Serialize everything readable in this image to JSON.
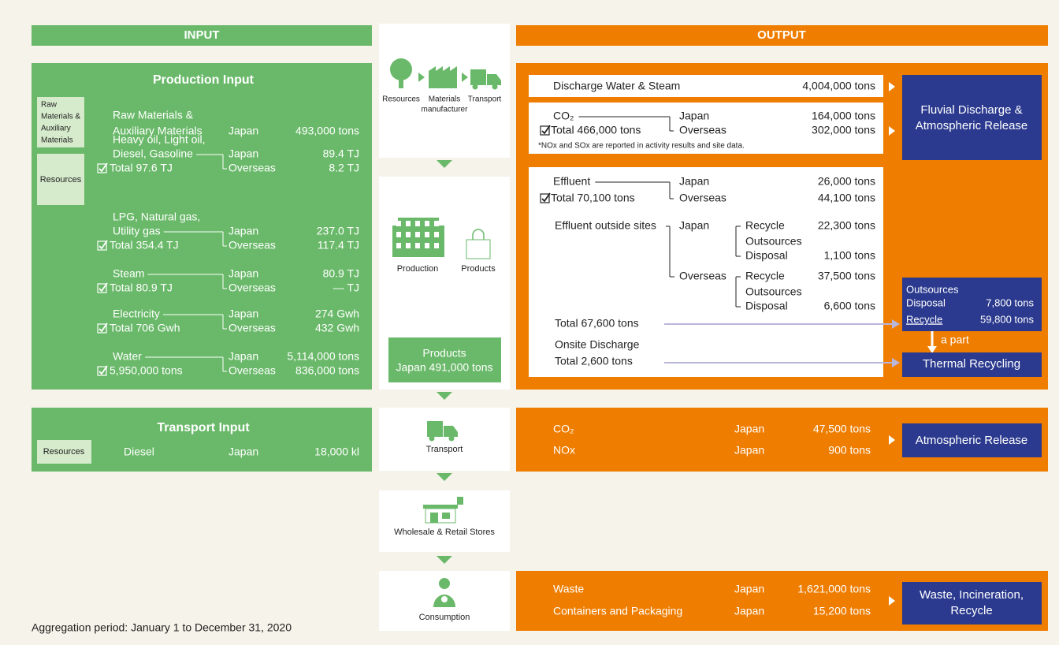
{
  "headers": {
    "input": "INPUT",
    "output": "OUTPUT"
  },
  "production_input": {
    "title": "Production Input",
    "raw_materials": {
      "category": [
        "Raw",
        "Materials &",
        "Auxiliary",
        "Materials"
      ],
      "label": [
        "Raw Materials &",
        "Auxiliary Materials"
      ],
      "region": "Japan",
      "amount": "493,000 tons"
    },
    "resources": {
      "category": "Resources",
      "items": [
        {
          "label": [
            "Heavy oil, Light oil,",
            "Diesel, Gasoline"
          ],
          "total": "Total 97.6 TJ",
          "japan": "Japan",
          "japan_amount": "89.4 TJ",
          "overseas": "Overseas",
          "overseas_amount": "8.2 TJ"
        },
        {
          "label": [
            "LPG, Natural gas,",
            "Utility gas"
          ],
          "total": "Total 354.4 TJ",
          "japan": "Japan",
          "japan_amount": "237.0 TJ",
          "overseas": "Overseas",
          "overseas_amount": "117.4 TJ"
        },
        {
          "label": [
            "Steam"
          ],
          "total": "Total 80.9 TJ",
          "japan": "Japan",
          "japan_amount": "80.9 TJ",
          "overseas": "Overseas",
          "overseas_amount": "— TJ"
        },
        {
          "label": [
            "Electricity"
          ],
          "total": "Total 706 Gwh",
          "japan": "Japan",
          "japan_amount": "274 Gwh",
          "overseas": "Overseas",
          "overseas_amount": "432 Gwh"
        },
        {
          "label": [
            "Water"
          ],
          "total": "5,950,000 tons",
          "japan": "Japan",
          "japan_amount": "5,114,000 tons",
          "overseas": "Overseas",
          "overseas_amount": "836,000 tons"
        }
      ]
    }
  },
  "flow": {
    "sourcing": {
      "resources": "Resources",
      "materials_manufacturer": [
        "Materials",
        "manufacturer"
      ],
      "transport": "Transport"
    },
    "production": {
      "production": "Production",
      "products": "Products",
      "output": [
        "Products",
        "Japan 491,000 tons"
      ]
    },
    "transport": "Transport",
    "stores": "Wholesale & Retail Stores",
    "consumption": "Consumption"
  },
  "production_output": {
    "discharge_water": {
      "label": "Discharge Water & Steam",
      "amount": "4,004,000 tons"
    },
    "co2": {
      "label": "CO₂",
      "total": "Total 466,000 tons",
      "japan": "Japan",
      "japan_amount": "164,000 tons",
      "overseas": "Overseas",
      "overseas_amount": "302,000 tons",
      "note": "*NOx and SOx are reported in activity results and site data."
    },
    "destination": [
      "Fluvial Discharge &",
      "Atmospheric Release"
    ],
    "effluent": {
      "label": "Effluent",
      "total": "Total 70,100 tons",
      "japan": "Japan",
      "japan_amount": "26,000 tons",
      "overseas": "Overseas",
      "overseas_amount": "44,100 tons"
    },
    "outside_sites": {
      "label": "Effluent outside sites",
      "japan": {
        "region": "Japan",
        "recycle": "Recycle",
        "recycle_amount": "22,300 tons",
        "outsources": "Outsources",
        "disposal": "Disposal",
        "disposal_amount": "1,100 tons"
      },
      "overseas": {
        "region": "Overseas",
        "recycle": "Recycle",
        "recycle_amount": "37,500 tons",
        "outsources": "Outsources",
        "disposal": "Disposal",
        "disposal_amount": "6,600 tons"
      },
      "total": "Total 67,600 tons"
    },
    "onsite": {
      "label": "Onsite Discharge",
      "total": "Total 2,600 tons"
    },
    "outsources": {
      "title": "Outsources",
      "disposal": "Disposal",
      "disposal_amount": "7,800 tons",
      "recycle": "Recycle",
      "recycle_amount": "59,800 tons"
    },
    "a_part": "a part",
    "thermal": "Thermal Recycling"
  },
  "transport_input": {
    "title": "Transport Input",
    "category": "Resources",
    "label": "Diesel",
    "region": "Japan",
    "amount": "18,000 kl"
  },
  "transport_output": {
    "rows": [
      {
        "label": "CO₂",
        "region": "Japan",
        "amount": "47,500 tons"
      },
      {
        "label": "NOx",
        "region": "Japan",
        "amount": "900 tons"
      }
    ],
    "destination": "Atmospheric Release"
  },
  "consumption_output": {
    "rows": [
      {
        "label": "Waste",
        "region": "Japan",
        "amount": "1,621,000 tons"
      },
      {
        "label": "Containers and Packaging",
        "region": "Japan",
        "amount": "15,200 tons"
      }
    ],
    "destination": [
      "Waste, Incineration,",
      "Recycle"
    ]
  },
  "footer": "Aggregation period: January 1 to December 31, 2020"
}
